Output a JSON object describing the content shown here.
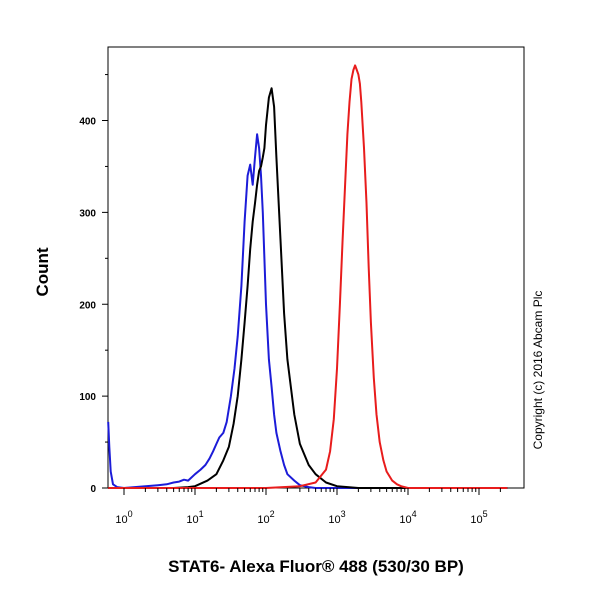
{
  "chart_data": {
    "type": "line",
    "chart_kind": "flow cytometry histogram",
    "xlabel": "STAT6- Alexa Fluor® 488 (530/30 BP)",
    "ylabel": "Count",
    "x_scale": "log",
    "xlim": [
      0.6,
      250000
    ],
    "ylim": [
      0,
      480
    ],
    "x_ticks": [
      {
        "base": "10",
        "exp": "0",
        "value": 1
      },
      {
        "base": "10",
        "exp": "1",
        "value": 10
      },
      {
        "base": "10",
        "exp": "2",
        "value": 100
      },
      {
        "base": "10",
        "exp": "3",
        "value": 1000
      },
      {
        "base": "10",
        "exp": "4",
        "value": 10000
      },
      {
        "base": "10",
        "exp": "5",
        "value": 100000
      }
    ],
    "y_ticks": [
      0,
      100,
      200,
      300,
      400
    ],
    "grid": false,
    "legend": "none",
    "copyright": "Copyright (c) 2016 Abcam Plc",
    "series": [
      {
        "color": "#1c1cd8",
        "x": [
          0.6,
          0.62,
          0.65,
          0.7,
          0.8,
          1,
          2,
          3,
          4,
          5,
          6,
          7,
          8,
          10,
          12,
          14,
          16,
          18,
          20,
          22,
          25,
          28,
          32,
          36,
          40,
          45,
          50,
          55,
          60,
          65,
          70,
          75,
          80,
          85,
          90,
          95,
          100,
          110,
          120,
          130,
          140,
          160,
          180,
          200,
          250,
          300,
          400,
          500,
          700,
          1000,
          3000,
          10000,
          250000
        ],
        "y": [
          72,
          45,
          18,
          4,
          1,
          0,
          2,
          3,
          4,
          6,
          7,
          9,
          8,
          15,
          20,
          25,
          32,
          40,
          48,
          55,
          60,
          72,
          100,
          130,
          165,
          220,
          290,
          340,
          352,
          330,
          360,
          385,
          370,
          340,
          300,
          250,
          200,
          140,
          110,
          80,
          60,
          40,
          25,
          15,
          8,
          3,
          1,
          0,
          0,
          0,
          0,
          0,
          0
        ]
      },
      {
        "color": "#000000",
        "x": [
          0.6,
          5,
          8,
          10,
          15,
          20,
          25,
          30,
          35,
          40,
          45,
          50,
          55,
          60,
          65,
          70,
          75,
          80,
          85,
          90,
          95,
          100,
          110,
          120,
          130,
          140,
          160,
          180,
          200,
          250,
          300,
          400,
          500,
          700,
          1000,
          2000,
          250000
        ],
        "y": [
          0,
          0,
          1,
          2,
          8,
          15,
          30,
          45,
          70,
          100,
          140,
          180,
          220,
          260,
          290,
          310,
          330,
          345,
          350,
          360,
          370,
          395,
          425,
          435,
          415,
          360,
          270,
          190,
          140,
          80,
          48,
          25,
          15,
          6,
          2,
          0,
          0
        ]
      },
      {
        "color": "#e81c1c",
        "x": [
          0.6,
          100,
          300,
          500,
          700,
          800,
          900,
          1000,
          1100,
          1200,
          1300,
          1400,
          1500,
          1600,
          1700,
          1800,
          1900,
          2000,
          2100,
          2200,
          2400,
          2600,
          2800,
          3000,
          3300,
          3600,
          4000,
          4500,
          5000,
          6000,
          7000,
          8000,
          10000,
          20000,
          250000
        ],
        "y": [
          0,
          0,
          2,
          6,
          20,
          40,
          75,
          130,
          200,
          270,
          330,
          385,
          420,
          445,
          455,
          460,
          455,
          450,
          440,
          420,
          370,
          310,
          240,
          180,
          120,
          80,
          50,
          30,
          18,
          8,
          4,
          2,
          0,
          0,
          0
        ]
      }
    ]
  }
}
